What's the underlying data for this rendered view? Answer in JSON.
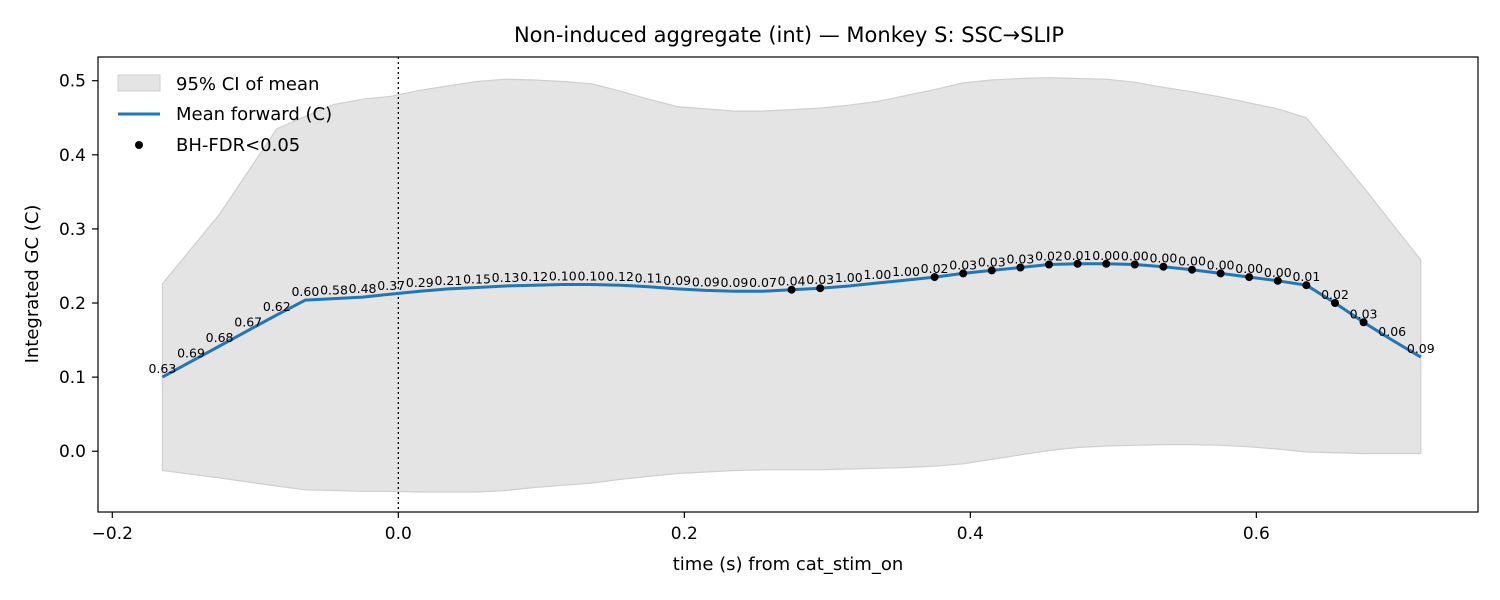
{
  "chart_data": {
    "type": "line",
    "title": "Non-induced aggregate (int) — Monkey S: SSC→SLIP",
    "xlabel": "time (s) from cat_stim_on",
    "ylabel": "Integrated GC (C)",
    "xlim": [
      -0.21,
      0.755
    ],
    "ylim": [
      -0.082,
      0.532
    ],
    "xticks": [
      -0.2,
      0.0,
      0.2,
      0.4,
      0.6
    ],
    "xtick_labels": [
      "−0.2",
      "0.0",
      "0.2",
      "0.4",
      "0.6"
    ],
    "yticks": [
      0.0,
      0.1,
      0.2,
      0.3,
      0.4,
      0.5
    ],
    "ytick_labels": [
      "0.0",
      "0.1",
      "0.2",
      "0.3",
      "0.4",
      "0.5"
    ],
    "grid": false,
    "legend_position": "top-left",
    "reference_line": {
      "x": 0.0,
      "style": "dotted"
    },
    "colors": {
      "mean": "#1f77b4",
      "ci": "#e4e4e4",
      "ci_edge": "#cfcfcf",
      "sig": "#000000"
    },
    "legend": [
      {
        "kind": "ci-patch",
        "label": "95% CI of mean"
      },
      {
        "kind": "line",
        "label": "Mean forward (C)"
      },
      {
        "kind": "point",
        "label": "BH-FDR<0.05"
      }
    ],
    "series": [
      {
        "name": "Mean forward (C)",
        "x": [
          -0.165,
          -0.145,
          -0.125,
          -0.105,
          -0.085,
          -0.065,
          -0.045,
          -0.025,
          -0.005,
          0.015,
          0.035,
          0.055,
          0.075,
          0.095,
          0.115,
          0.135,
          0.155,
          0.175,
          0.195,
          0.215,
          0.235,
          0.255,
          0.275,
          0.295,
          0.315,
          0.335,
          0.355,
          0.375,
          0.395,
          0.415,
          0.435,
          0.455,
          0.475,
          0.495,
          0.515,
          0.535,
          0.555,
          0.575,
          0.595,
          0.615,
          0.635,
          0.655,
          0.675,
          0.695,
          0.715
        ],
        "y": [
          0.1,
          0.121,
          0.142,
          0.163,
          0.184,
          0.204,
          0.206,
          0.208,
          0.212,
          0.216,
          0.219,
          0.221,
          0.223,
          0.224,
          0.225,
          0.225,
          0.224,
          0.222,
          0.219,
          0.217,
          0.216,
          0.216,
          0.218,
          0.22,
          0.223,
          0.227,
          0.231,
          0.235,
          0.24,
          0.244,
          0.248,
          0.252,
          0.253,
          0.253,
          0.252,
          0.249,
          0.245,
          0.24,
          0.235,
          0.23,
          0.224,
          0.2,
          0.174,
          0.15,
          0.127
        ],
        "p_values": [
          "0.63",
          "0.69",
          "0.68",
          "0.67",
          "0.62",
          "0.60",
          "0.58",
          "0.48",
          "0.37",
          "0.29",
          "0.21",
          "0.15",
          "0.13",
          "0.12",
          "0.10",
          "0.10",
          "0.12",
          "0.11",
          "0.09",
          "0.09",
          "0.09",
          "0.07",
          "0.04",
          "0.03",
          "1.00",
          "1.00",
          "1.00",
          "0.02",
          "0.03",
          "0.03",
          "0.03",
          "0.02",
          "0.01",
          "0.00",
          "0.00",
          "0.00",
          "0.00",
          "0.00",
          "0.00",
          "0.00",
          "0.01",
          "0.02",
          "0.03",
          "0.06",
          "0.09"
        ],
        "significant": [
          false,
          false,
          false,
          false,
          false,
          false,
          false,
          false,
          false,
          false,
          false,
          false,
          false,
          false,
          false,
          false,
          false,
          false,
          false,
          false,
          false,
          false,
          true,
          true,
          false,
          false,
          false,
          true,
          true,
          true,
          true,
          true,
          true,
          true,
          true,
          true,
          true,
          true,
          true,
          true,
          true,
          true,
          true,
          false,
          false
        ]
      }
    ],
    "ci_band": {
      "name": "95% CI of mean",
      "upper": [
        [
          -0.165,
          0.226
        ],
        [
          -0.125,
          0.32
        ],
        [
          -0.085,
          0.435
        ],
        [
          -0.065,
          0.452
        ],
        [
          -0.045,
          0.468
        ],
        [
          -0.025,
          0.475
        ],
        [
          -0.005,
          0.479
        ],
        [
          0.015,
          0.487
        ],
        [
          0.035,
          0.493
        ],
        [
          0.055,
          0.499
        ],
        [
          0.075,
          0.502
        ],
        [
          0.095,
          0.501
        ],
        [
          0.115,
          0.499
        ],
        [
          0.135,
          0.496
        ],
        [
          0.155,
          0.486
        ],
        [
          0.175,
          0.475
        ],
        [
          0.195,
          0.465
        ],
        [
          0.215,
          0.462
        ],
        [
          0.235,
          0.459
        ],
        [
          0.255,
          0.459
        ],
        [
          0.275,
          0.461
        ],
        [
          0.295,
          0.463
        ],
        [
          0.315,
          0.467
        ],
        [
          0.335,
          0.472
        ],
        [
          0.355,
          0.48
        ],
        [
          0.375,
          0.488
        ],
        [
          0.395,
          0.497
        ],
        [
          0.415,
          0.501
        ],
        [
          0.435,
          0.503
        ],
        [
          0.455,
          0.504
        ],
        [
          0.475,
          0.503
        ],
        [
          0.495,
          0.502
        ],
        [
          0.515,
          0.498
        ],
        [
          0.535,
          0.491
        ],
        [
          0.555,
          0.485
        ],
        [
          0.575,
          0.478
        ],
        [
          0.595,
          0.47
        ],
        [
          0.615,
          0.462
        ],
        [
          0.635,
          0.45
        ],
        [
          0.675,
          0.356
        ],
        [
          0.715,
          0.258
        ]
      ],
      "lower": [
        [
          -0.165,
          -0.026
        ],
        [
          -0.125,
          -0.036
        ],
        [
          -0.085,
          -0.047
        ],
        [
          -0.065,
          -0.052
        ],
        [
          -0.045,
          -0.053
        ],
        [
          -0.025,
          -0.054
        ],
        [
          -0.005,
          -0.054
        ],
        [
          0.015,
          -0.055
        ],
        [
          0.035,
          -0.055
        ],
        [
          0.055,
          -0.055
        ],
        [
          0.075,
          -0.053
        ],
        [
          0.095,
          -0.049
        ],
        [
          0.115,
          -0.046
        ],
        [
          0.135,
          -0.043
        ],
        [
          0.155,
          -0.038
        ],
        [
          0.175,
          -0.034
        ],
        [
          0.195,
          -0.03
        ],
        [
          0.215,
          -0.028
        ],
        [
          0.235,
          -0.026
        ],
        [
          0.255,
          -0.025
        ],
        [
          0.275,
          -0.025
        ],
        [
          0.295,
          -0.025
        ],
        [
          0.315,
          -0.024
        ],
        [
          0.335,
          -0.023
        ],
        [
          0.355,
          -0.022
        ],
        [
          0.375,
          -0.02
        ],
        [
          0.395,
          -0.017
        ],
        [
          0.415,
          -0.011
        ],
        [
          0.435,
          -0.005
        ],
        [
          0.455,
          0.001
        ],
        [
          0.475,
          0.005
        ],
        [
          0.495,
          0.007
        ],
        [
          0.515,
          0.008
        ],
        [
          0.535,
          0.009
        ],
        [
          0.555,
          0.009
        ],
        [
          0.575,
          0.008
        ],
        [
          0.595,
          0.006
        ],
        [
          0.615,
          0.003
        ],
        [
          0.635,
          -0.001
        ],
        [
          0.675,
          -0.003
        ],
        [
          0.715,
          -0.003
        ]
      ]
    }
  }
}
